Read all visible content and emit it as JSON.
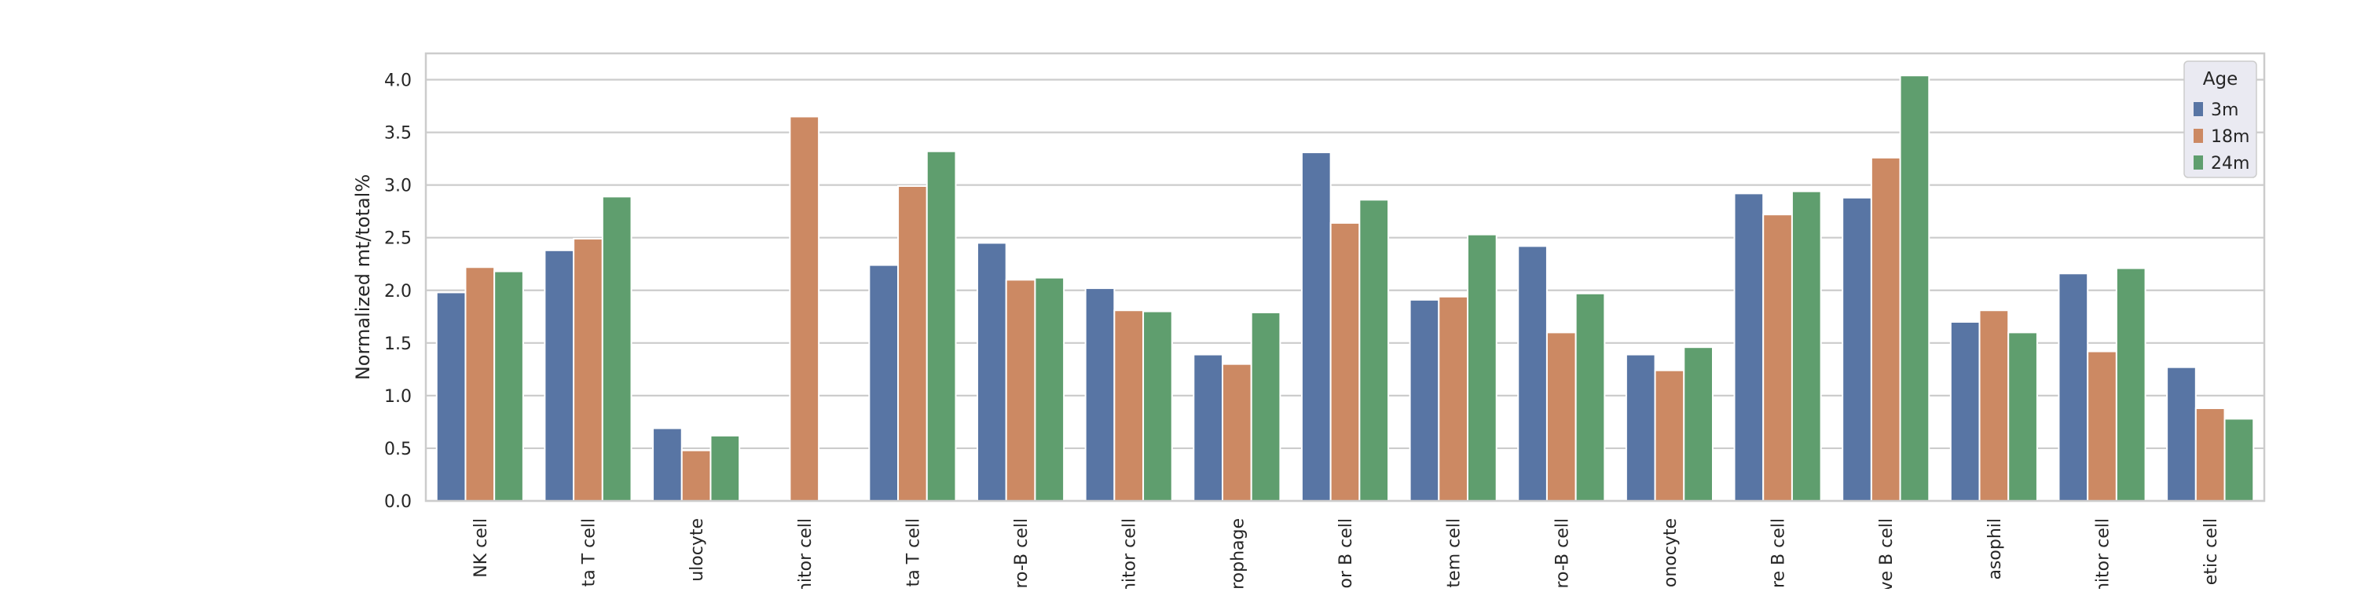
{
  "colors": {
    "plot_background": "#ffffff",
    "grid": "#cccccc",
    "axes_frame": "#cccccc",
    "legend_background": "#eaeaf2"
  },
  "chart_data": {
    "type": "bar",
    "title": "",
    "xlabel": "",
    "ylabel": "Normalized mt/total%",
    "ylim": [
      0,
      4.25
    ],
    "yticks": [
      "0.0",
      "0.5",
      "1.0",
      "1.5",
      "2.0",
      "2.5",
      "3.0",
      "3.5",
      "4.0"
    ],
    "grid": true,
    "legend": {
      "title": "Age",
      "position": "top-right"
    },
    "categories": [
      "NK cell",
      "ta T cell",
      "ulocyte",
      "nitor cell",
      "ta T cell",
      "ro-B cell",
      "nitor cell",
      "rophage",
      "or B cell",
      "tem cell",
      "ro-B cell",
      "onocyte",
      "re B cell",
      "ve B cell",
      "asophil",
      "nitor cell",
      "etic cell"
    ],
    "series": [
      {
        "name": "3m",
        "color": "#5875a4",
        "values": [
          1.98,
          2.38,
          0.69,
          null,
          2.24,
          2.45,
          2.02,
          1.39,
          3.31,
          1.91,
          2.42,
          1.39,
          2.92,
          2.88,
          1.7,
          2.16,
          1.27
        ]
      },
      {
        "name": "18m",
        "color": "#cc8963",
        "values": [
          2.22,
          2.49,
          0.48,
          3.65,
          2.99,
          2.1,
          1.81,
          1.3,
          2.64,
          1.94,
          1.6,
          1.24,
          2.72,
          3.26,
          1.81,
          1.42,
          0.88
        ]
      },
      {
        "name": "24m",
        "color": "#5f9e6e",
        "values": [
          2.18,
          2.89,
          0.62,
          null,
          3.32,
          2.12,
          1.8,
          1.79,
          2.86,
          2.53,
          1.97,
          1.46,
          2.94,
          4.04,
          1.6,
          2.21,
          0.78
        ]
      }
    ]
  }
}
